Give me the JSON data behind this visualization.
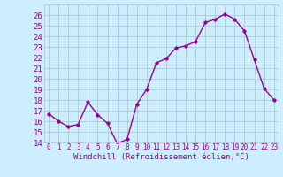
{
  "x": [
    0,
    1,
    2,
    3,
    4,
    5,
    6,
    7,
    8,
    9,
    10,
    11,
    12,
    13,
    14,
    15,
    16,
    17,
    18,
    19,
    20,
    21,
    22,
    23
  ],
  "y": [
    16.7,
    16.0,
    15.5,
    15.7,
    17.8,
    16.6,
    15.8,
    13.9,
    14.3,
    17.6,
    19.0,
    21.5,
    21.9,
    22.9,
    23.1,
    23.5,
    25.3,
    25.6,
    26.1,
    25.6,
    24.5,
    21.8,
    19.1,
    18.0
  ],
  "ylim": [
    14,
    27
  ],
  "yticks": [
    14,
    15,
    16,
    17,
    18,
    19,
    20,
    21,
    22,
    23,
    24,
    25,
    26
  ],
  "xticks": [
    0,
    1,
    2,
    3,
    4,
    5,
    6,
    7,
    8,
    9,
    10,
    11,
    12,
    13,
    14,
    15,
    16,
    17,
    18,
    19,
    20,
    21,
    22,
    23
  ],
  "xlabel": "Windchill (Refroidissement éolien,°C)",
  "line_color": "#990099",
  "marker": "D",
  "marker_size": 1.8,
  "line_width": 1.0,
  "bg_color": "#cceeff",
  "grid_color": "#aacccc",
  "tick_color": "#990099",
  "xlabel_color": "#990099",
  "xlabel_fontsize": 6.5,
  "ytick_fontsize": 6.5,
  "xtick_fontsize": 5.5
}
